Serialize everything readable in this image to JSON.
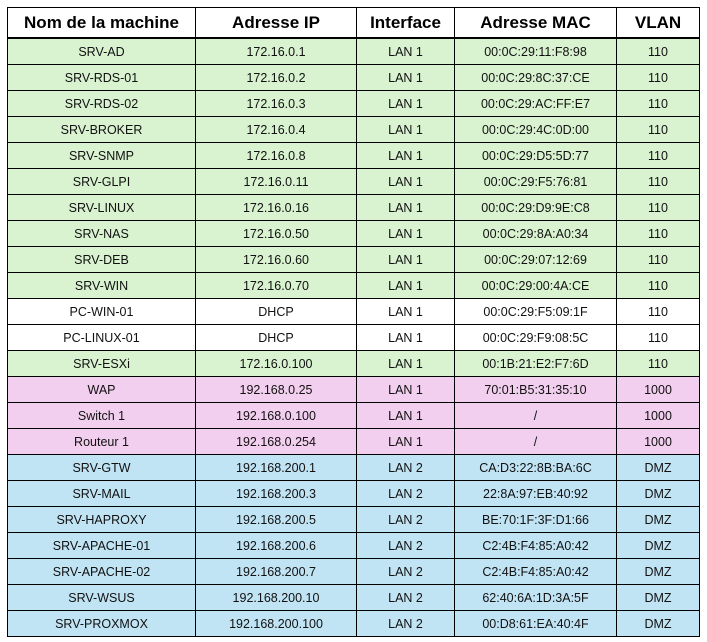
{
  "table": {
    "headers": [
      "Nom de la machine",
      "Adresse IP",
      "Interface",
      "Adresse MAC",
      "VLAN"
    ],
    "rows": [
      {
        "group": "lan",
        "cells": [
          "SRV-AD",
          "172.16.0.1",
          "LAN 1",
          "00:0C:29:11:F8:98",
          "110"
        ]
      },
      {
        "group": "lan",
        "cells": [
          "SRV-RDS-01",
          "172.16.0.2",
          "LAN 1",
          "00:0C:29:8C:37:CE",
          "110"
        ]
      },
      {
        "group": "lan",
        "cells": [
          "SRV-RDS-02",
          "172.16.0.3",
          "LAN 1",
          "00:0C:29:AC:FF:E7",
          "110"
        ]
      },
      {
        "group": "lan",
        "cells": [
          "SRV-BROKER",
          "172.16.0.4",
          "LAN 1",
          "00:0C:29:4C:0D:00",
          "110"
        ]
      },
      {
        "group": "lan",
        "cells": [
          "SRV-SNMP",
          "172.16.0.8",
          "LAN 1",
          "00:0C:29:D5:5D:77",
          "110"
        ]
      },
      {
        "group": "lan",
        "cells": [
          "SRV-GLPI",
          "172.16.0.11",
          "LAN 1",
          "00:0C:29:F5:76:81",
          "110"
        ]
      },
      {
        "group": "lan",
        "cells": [
          "SRV-LINUX",
          "172.16.0.16",
          "LAN 1",
          "00:0C:29:D9:9E:C8",
          "110"
        ]
      },
      {
        "group": "lan",
        "cells": [
          "SRV-NAS",
          "172.16.0.50",
          "LAN 1",
          "00:0C:29:8A:A0:34",
          "110"
        ]
      },
      {
        "group": "lan",
        "cells": [
          "SRV-DEB",
          "172.16.0.60",
          "LAN 1",
          "00:0C:29:07:12:69",
          "110"
        ]
      },
      {
        "group": "lan",
        "cells": [
          "SRV-WIN",
          "172.16.0.70",
          "LAN 1",
          "00:0C:29:00:4A:CE",
          "110"
        ]
      },
      {
        "group": "dhcp",
        "cells": [
          "PC-WIN-01",
          "DHCP",
          "LAN 1",
          "00:0C:29:F5:09:1F",
          "110"
        ]
      },
      {
        "group": "dhcp",
        "cells": [
          "PC-LINUX-01",
          "DHCP",
          "LAN 1",
          "00:0C:29:F9:08:5C",
          "110"
        ]
      },
      {
        "group": "lan",
        "cells": [
          "SRV-ESXi",
          "172.16.0.100",
          "LAN 1",
          "00:1B:21:E2:F7:6D",
          "110"
        ]
      },
      {
        "group": "infra",
        "cells": [
          "WAP",
          "192.168.0.25",
          "LAN 1",
          "70:01:B5:31:35:10",
          "1000"
        ]
      },
      {
        "group": "infra",
        "cells": [
          "Switch 1",
          "192.168.0.100",
          "LAN 1",
          "/",
          "1000"
        ]
      },
      {
        "group": "infra",
        "cells": [
          "Routeur 1",
          "192.168.0.254",
          "LAN 1",
          "/",
          "1000"
        ]
      },
      {
        "group": "dmz",
        "cells": [
          "SRV-GTW",
          "192.168.200.1",
          "LAN 2",
          "CA:D3:22:8B:BA:6C",
          "DMZ"
        ]
      },
      {
        "group": "dmz",
        "cells": [
          "SRV-MAIL",
          "192.168.200.3",
          "LAN 2",
          "22:8A:97:EB:40:92",
          "DMZ"
        ]
      },
      {
        "group": "dmz",
        "cells": [
          "SRV-HAPROXY",
          "192.168.200.5",
          "LAN 2",
          "BE:70:1F:3F:D1:66",
          "DMZ"
        ]
      },
      {
        "group": "dmz",
        "cells": [
          "SRV-APACHE-01",
          "192.168.200.6",
          "LAN 2",
          "C2:4B:F4:85:A0:42",
          "DMZ"
        ]
      },
      {
        "group": "dmz",
        "cells": [
          "SRV-APACHE-02",
          "192.168.200.7",
          "LAN 2",
          "C2:4B:F4:85:A0:42",
          "DMZ"
        ]
      },
      {
        "group": "dmz",
        "cells": [
          "SRV-WSUS",
          "192.168.200.10",
          "LAN 2",
          "62:40:6A:1D:3A:5F",
          "DMZ"
        ]
      },
      {
        "group": "dmz",
        "cells": [
          "SRV-PROXMOX",
          "192.168.200.100",
          "LAN 2",
          "00:D8:61:EA:40:4F",
          "DMZ"
        ]
      }
    ],
    "colors": {
      "lan": "#d9f2d0",
      "dhcp": "#ffffff",
      "infra": "#f2cfee",
      "dmz": "#c1e4f5"
    }
  }
}
